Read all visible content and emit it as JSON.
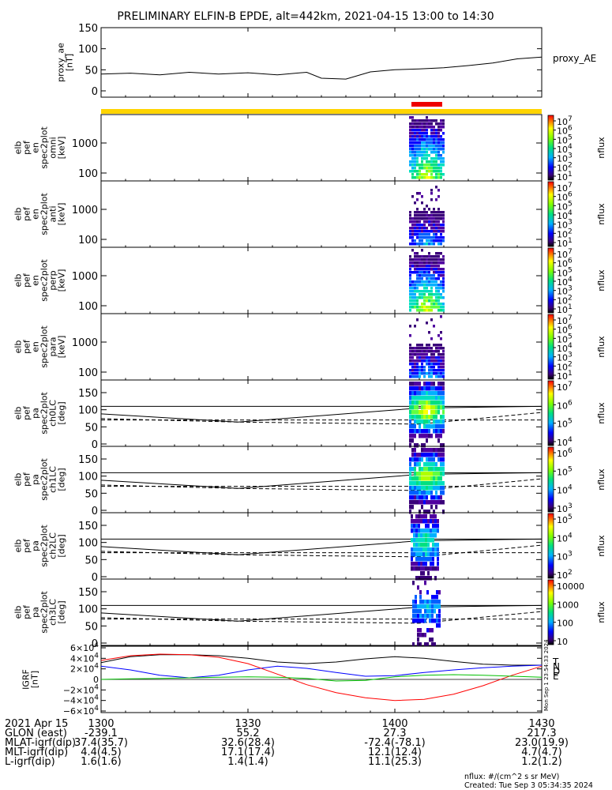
{
  "title": "PRELIMINARY ELFIN-B EPDE, alt=442km, 2021-04-15 13:00 to 14:30",
  "colors": {
    "yellow_bar": "#ffd400",
    "red_bar": "#ee0000",
    "grf_black": "#000000",
    "grf_blue": "#0000ff",
    "grf_red": "#ff0000",
    "grf_green": "#00c000"
  },
  "chart_data": [
    {
      "type": "line",
      "panel": "proxy_ae",
      "ylabel_lines": [
        "proxy_ae",
        "[nT]"
      ],
      "legend": "proxy_AE",
      "ylim": [
        0,
        150
      ],
      "yticks": [
        "150",
        "100",
        "50",
        "0"
      ],
      "ytick_values": [
        150,
        100,
        50,
        0
      ],
      "x_minutes": [
        0,
        6,
        12,
        18,
        24,
        30,
        36,
        42,
        45,
        50,
        55,
        60,
        65,
        70,
        75,
        80,
        85,
        90
      ],
      "values": [
        40,
        42,
        38,
        44,
        40,
        43,
        38,
        44,
        30,
        28,
        45,
        50,
        52,
        55,
        60,
        66,
        76,
        80
      ]
    },
    {
      "type": "heatmap",
      "panel": "omni",
      "ylabel_lines": [
        "elb",
        "pef",
        "en",
        "spec2plot",
        "omni",
        "[keV]"
      ],
      "yticks": [
        "1000",
        "100"
      ],
      "cbar_ticks": [
        "10^7",
        "10^6",
        "10^5",
        "10^4",
        "10^3",
        "10^2",
        "10^1"
      ],
      "cbar_label": "nflux"
    },
    {
      "type": "heatmap",
      "panel": "anti",
      "ylabel_lines": [
        "elb",
        "pef",
        "en",
        "spec2plot",
        "anti",
        "[keV]"
      ],
      "yticks": [
        "1000",
        "100"
      ],
      "cbar_ticks": [
        "10^7",
        "10^6",
        "10^5",
        "10^4",
        "10^3",
        "10^2",
        "10^1"
      ],
      "cbar_label": "nflux"
    },
    {
      "type": "heatmap",
      "panel": "perp",
      "ylabel_lines": [
        "elb",
        "pef",
        "en",
        "spec2plot",
        "perp",
        "[keV]"
      ],
      "yticks": [
        "1000",
        "100"
      ],
      "cbar_ticks": [
        "10^7",
        "10^6",
        "10^5",
        "10^4",
        "10^3",
        "10^2",
        "10^1"
      ],
      "cbar_label": "nflux"
    },
    {
      "type": "heatmap",
      "panel": "para",
      "ylabel_lines": [
        "elb",
        "pef",
        "en",
        "spec2plot",
        "para",
        "[keV]"
      ],
      "yticks": [
        "1000",
        "100"
      ],
      "cbar_ticks": [
        "10^7",
        "10^6",
        "10^5",
        "10^4",
        "10^3",
        "10^2",
        "10^1"
      ],
      "cbar_label": "nflux"
    },
    {
      "type": "heatmap",
      "panel": "ch0LC",
      "ylabel_lines": [
        "elb",
        "pef",
        "pa",
        "spec2plot",
        "ch0LC",
        "[deg]"
      ],
      "yticks": [
        "150",
        "100",
        "50",
        "0"
      ],
      "cbar_ticks": [
        "10^7",
        "10^6",
        "10^5",
        "10^4"
      ],
      "cbar_label": "nflux"
    },
    {
      "type": "heatmap",
      "panel": "ch1LC",
      "ylabel_lines": [
        "elb",
        "pef",
        "pa",
        "spec2plot",
        "ch1LC",
        "[deg]"
      ],
      "yticks": [
        "150",
        "100",
        "50",
        "0"
      ],
      "cbar_ticks": [
        "10^6",
        "10^5",
        "10^4",
        "10^3"
      ],
      "cbar_label": "nflux"
    },
    {
      "type": "heatmap",
      "panel": "ch2LC",
      "ylabel_lines": [
        "elb",
        "pef",
        "pa",
        "spec2plot",
        "ch2LC",
        "[deg]"
      ],
      "yticks": [
        "150",
        "100",
        "50",
        "0"
      ],
      "cbar_ticks": [
        "10^5",
        "10^4",
        "10^3",
        "10^2"
      ],
      "cbar_label": "nflux"
    },
    {
      "type": "heatmap",
      "panel": "ch3LC",
      "ylabel_lines": [
        "elb",
        "pef",
        "pa",
        "spec2plot",
        "ch3LC",
        "[deg]"
      ],
      "yticks": [
        "150",
        "100",
        "50",
        "0"
      ],
      "cbar_ticks": [
        "10000",
        "1000",
        "100",
        "10"
      ],
      "cbar_label": "nflux"
    },
    {
      "type": "line",
      "panel": "IGRF",
      "ylabel_lines": [
        "IGRF",
        "[nT]"
      ],
      "ylim": [
        -60000,
        60000
      ],
      "yticks": [
        "6×10^4",
        "4×10^4",
        "2×10^4",
        "0",
        "−2×10^4",
        "−4×10^4",
        "−6×10^4"
      ],
      "ytick_values": [
        60000,
        40000,
        20000,
        0,
        -20000,
        -40000,
        -60000
      ],
      "legend_letters": [
        "T",
        "N",
        "D",
        "E"
      ],
      "x_minutes": [
        0,
        6,
        12,
        18,
        24,
        30,
        36,
        42,
        48,
        54,
        60,
        66,
        72,
        78,
        84,
        90
      ],
      "series": [
        {
          "color_key": "grf_black",
          "values": [
            32000,
            43000,
            47000,
            47000,
            45000,
            40000,
            33000,
            30000,
            33000,
            39000,
            43000,
            40000,
            34000,
            29000,
            27000,
            27000
          ]
        },
        {
          "color_key": "grf_blue",
          "values": [
            25000,
            18000,
            8000,
            3000,
            8000,
            18000,
            25000,
            21000,
            13000,
            6000,
            7000,
            13000,
            18000,
            22000,
            25000,
            27000
          ]
        },
        {
          "color_key": "grf_red",
          "values": [
            36000,
            45000,
            48000,
            47000,
            42000,
            30000,
            10000,
            -10000,
            -25000,
            -35000,
            -40000,
            -38000,
            -28000,
            -12000,
            8000,
            25000
          ]
        },
        {
          "color_key": "grf_green",
          "values": [
            0,
            1000,
            2000,
            3000,
            4000,
            5000,
            4000,
            2000,
            -3000,
            -2000,
            5000,
            8000,
            9000,
            8000,
            6000,
            4000
          ]
        }
      ]
    }
  ],
  "vertical_side_label": "Mon Sep 1 23:54:33 2024",
  "xaxis_table": {
    "rows": [
      {
        "label": "2021 Apr 15",
        "values": [
          "1300",
          "1330",
          "1400",
          "1430"
        ]
      },
      {
        "label": "GLON (east)",
        "values": [
          "-239.1",
          "55.2",
          "27.3",
          "217.3"
        ]
      },
      {
        "label": "MLAT-igrf(dip)",
        "values": [
          "37.4(35.7)",
          "32.6(28.4)",
          "-72.4(-78.1)",
          "23.0(19.9)"
        ]
      },
      {
        "label": "MLT-igrf(dip)",
        "values": [
          "4.4(4.5)",
          "17.1(17.4)",
          "12.1(12.4)",
          "4.7(4.7)"
        ]
      },
      {
        "label": "L-igrf(dip)",
        "values": [
          "1.6(1.6)",
          "1.4(1.4)",
          "11.1(25.3)",
          "1.2(1.2)"
        ]
      }
    ]
  },
  "footer": {
    "units": "nflux: #/(cm^2 s sr MeV)",
    "created": "Created: Tue Sep  3 05:34:35 2024"
  }
}
